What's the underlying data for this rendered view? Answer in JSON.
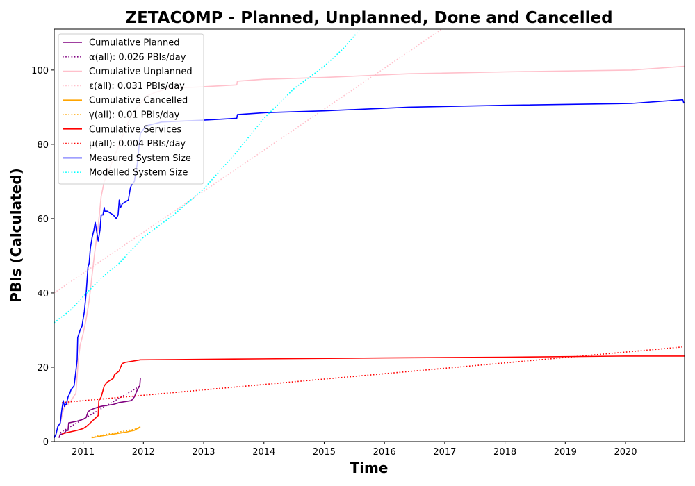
{
  "chart_data": {
    "type": "line",
    "title": "ZETACOMP - Planned, Unplanned, Done  and Cancelled",
    "xlabel": "Time",
    "ylabel": "PBIs (Calculated)",
    "xlim": [
      2010.52,
      2020.98
    ],
    "ylim": [
      0,
      111
    ],
    "x_ticks": [
      2011,
      2012,
      2013,
      2014,
      2015,
      2016,
      2017,
      2018,
      2019,
      2020
    ],
    "x_tick_labels": [
      "2011",
      "2012",
      "2013",
      "2014",
      "2015",
      "2016",
      "2017",
      "2018",
      "2019",
      "2020"
    ],
    "y_ticks": [
      0,
      20,
      40,
      60,
      80,
      100
    ],
    "y_tick_labels": [
      "0",
      "20",
      "40",
      "60",
      "80",
      "100"
    ],
    "grid": false,
    "legend_position": "top-left",
    "series": [
      {
        "name": "Cumulative Planned",
        "color": "#800080",
        "style": "solid",
        "x": [
          2010.6,
          2010.62,
          2010.65,
          2010.7,
          2010.72,
          2010.75,
          2010.76,
          2010.9,
          2011.0,
          2011.05,
          2011.08,
          2011.12,
          2011.2,
          2011.3,
          2011.5,
          2011.6,
          2011.8,
          2011.85,
          2011.9,
          2011.94,
          2011.95
        ],
        "y": [
          1,
          2,
          2,
          2.5,
          3,
          3,
          5,
          5.5,
          6,
          6.5,
          8,
          8.5,
          9,
          9.5,
          10,
          10.5,
          11,
          12,
          14,
          15,
          17
        ]
      },
      {
        "name": "α(all): 0.026 PBIs/day",
        "color": "#800080",
        "style": "dotted",
        "x": [
          2010.62,
          2011.95
        ],
        "y": [
          2.4,
          15
        ]
      },
      {
        "name": "Cumulative Unplanned",
        "color": "#ffc0cb",
        "style": "solid",
        "x": [
          2010.55,
          2010.58,
          2010.62,
          2010.65,
          2010.68,
          2010.72,
          2010.75,
          2010.8,
          2010.88,
          2010.92,
          2010.95,
          2011.0,
          2011.05,
          2011.1,
          2011.15,
          2011.2,
          2011.25,
          2011.3,
          2011.35,
          2011.45,
          2011.55,
          2011.65,
          2011.75,
          2011.85,
          2011.95,
          2012.05,
          2012.2,
          2012.4,
          2013.0,
          2013.55,
          2013.56,
          2014.0,
          2015.0,
          2016.4,
          2018.0,
          2020.1,
          2020.98
        ],
        "y": [
          2,
          4,
          5,
          7,
          9,
          10,
          10,
          11,
          13,
          22,
          26,
          29,
          33,
          38,
          45,
          52,
          58,
          66,
          70,
          74,
          78,
          82,
          86,
          89,
          91,
          93,
          94,
          95,
          95.5,
          96,
          97,
          97.5,
          98,
          99,
          99.5,
          100,
          101
        ]
      },
      {
        "name": "ε(all): 0.031 PBIs/day",
        "color": "#ffc0cb",
        "style": "dotted",
        "x": [
          2010.52,
          2016.95
        ],
        "y": [
          40,
          111
        ]
      },
      {
        "name": "Cumulative Cancelled",
        "color": "#ffa500",
        "style": "solid",
        "x": [
          2011.14,
          2011.3,
          2011.5,
          2011.7,
          2011.85,
          2011.95
        ],
        "y": [
          1,
          1.5,
          2,
          2.5,
          3,
          4
        ]
      },
      {
        "name": "γ(all): 0.01 PBIs/day",
        "color": "#ffa500",
        "style": "dotted",
        "x": [
          2011.14,
          2011.95
        ],
        "y": [
          1.2,
          3.6
        ]
      },
      {
        "name": "Cumulative Services",
        "color": "#ff0000",
        "style": "solid",
        "x": [
          2010.65,
          2010.7,
          2010.9,
          2011.0,
          2011.05,
          2011.25,
          2011.26,
          2011.3,
          2011.35,
          2011.4,
          2011.5,
          2011.52,
          2011.6,
          2011.62,
          2011.65,
          2011.7,
          2011.95,
          2013.5,
          2016.0,
          2018.0,
          2020.0,
          2020.98
        ],
        "y": [
          2,
          2.3,
          3,
          3.5,
          4,
          7,
          11,
          12,
          15,
          16,
          17,
          18,
          19,
          20,
          21,
          21.3,
          22,
          22.2,
          22.5,
          22.7,
          23,
          23
        ]
      },
      {
        "name": "μ(all): 0.004 PBIs/day",
        "color": "#ff0000",
        "style": "dotted",
        "x": [
          2010.65,
          2020.98
        ],
        "y": [
          10.5,
          25.5
        ]
      },
      {
        "name": "Measured System Size",
        "color": "#0000ff",
        "style": "solid",
        "x": [
          2010.52,
          2010.55,
          2010.58,
          2010.62,
          2010.65,
          2010.67,
          2010.69,
          2010.7,
          2010.72,
          2010.75,
          2010.78,
          2010.8,
          2010.85,
          2010.88,
          2010.9,
          2010.91,
          2010.93,
          2010.95,
          2010.98,
          2011.0,
          2011.02,
          2011.05,
          2011.08,
          2011.1,
          2011.12,
          2011.15,
          2011.18,
          2011.2,
          2011.25,
          2011.26,
          2011.28,
          2011.3,
          2011.33,
          2011.35,
          2011.36,
          2011.4,
          2011.45,
          2011.5,
          2011.55,
          2011.58,
          2011.6,
          2011.62,
          2011.65,
          2011.75,
          2011.78,
          2011.8,
          2011.85,
          2011.9,
          2011.95,
          2012.05,
          2012.3,
          2013.0,
          2013.55,
          2013.56,
          2014.0,
          2015.0,
          2016.4,
          2018.0,
          2020.1,
          2020.95,
          2020.97
        ],
        "y": [
          1,
          2,
          4,
          5,
          9,
          11,
          9.5,
          10,
          10,
          12,
          13,
          14,
          15,
          19,
          22,
          28,
          29,
          30,
          31,
          33,
          35,
          40,
          47,
          48,
          52,
          55,
          57,
          59,
          54,
          55,
          57,
          61,
          61,
          63,
          62,
          62,
          61.5,
          61,
          60,
          61,
          65,
          63,
          64,
          65,
          68,
          69,
          70,
          75,
          83,
          85,
          86,
          86.5,
          87,
          88,
          88.5,
          89,
          90,
          90.5,
          91,
          92,
          91
        ]
      },
      {
        "name": "Modelled System Size",
        "color": "#00ffff",
        "style": "dotted",
        "x": [
          2010.52,
          2010.8,
          2011.0,
          2011.3,
          2011.6,
          2012.0,
          2012.5,
          2013.0,
          2013.5,
          2014.0,
          2014.5,
          2015.0,
          2015.3,
          2015.6
        ],
        "y": [
          32,
          35.5,
          39,
          44,
          48,
          55,
          61,
          68,
          77,
          87,
          95,
          101,
          105.5,
          111
        ]
      }
    ]
  }
}
